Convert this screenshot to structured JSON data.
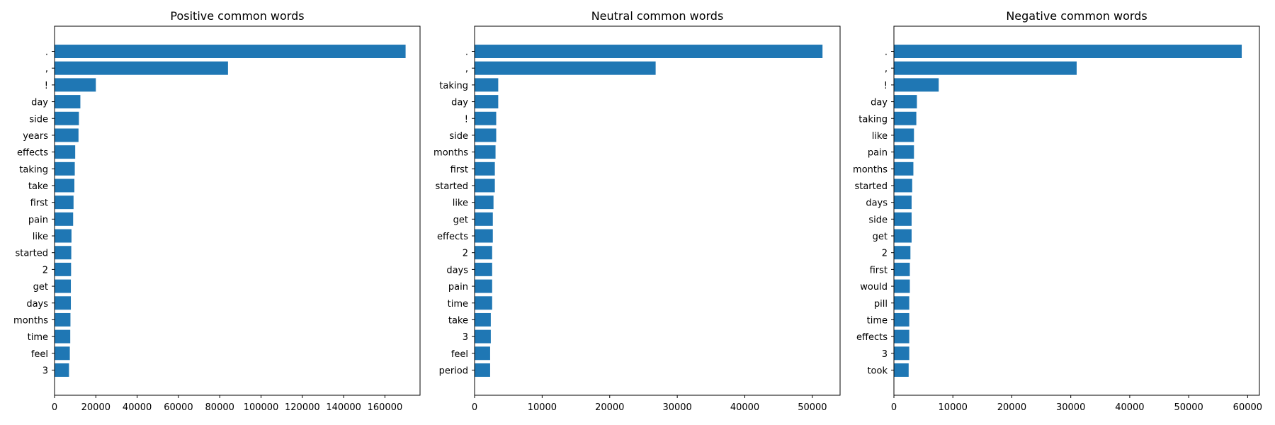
{
  "chart_data": [
    {
      "type": "bar",
      "orientation": "horizontal",
      "title": "Positive common words",
      "xlabel": "",
      "ylabel": "",
      "color": "#1f77b4",
      "xlim": [
        0,
        177000
      ],
      "xticks": [
        0,
        20000,
        40000,
        60000,
        80000,
        100000,
        120000,
        140000,
        160000
      ],
      "categories": [
        ".",
        ",",
        "!",
        "day",
        "side",
        "years",
        "effects",
        "taking",
        "take",
        "first",
        "pain",
        "like",
        "started",
        "2",
        "get",
        "days",
        "months",
        "time",
        "feel",
        "3"
      ],
      "values": [
        170000,
        84000,
        20000,
        12500,
        11800,
        11600,
        10000,
        9800,
        9600,
        9200,
        9000,
        8200,
        8100,
        8000,
        7900,
        7900,
        7700,
        7600,
        7400,
        7000
      ]
    },
    {
      "type": "bar",
      "orientation": "horizontal",
      "title": "Neutral common words",
      "xlabel": "",
      "ylabel": "",
      "color": "#1f77b4",
      "xlim": [
        0,
        54100
      ],
      "xticks": [
        0,
        10000,
        20000,
        30000,
        40000,
        50000
      ],
      "categories": [
        ".",
        ",",
        "taking",
        "day",
        "!",
        "side",
        "months",
        "first",
        "started",
        "like",
        "get",
        "effects",
        "2",
        "days",
        "pain",
        "time",
        "take",
        "3",
        "feel",
        "period"
      ],
      "values": [
        51500,
        26800,
        3500,
        3500,
        3200,
        3200,
        3100,
        3000,
        3000,
        2800,
        2700,
        2700,
        2600,
        2600,
        2600,
        2600,
        2400,
        2400,
        2300,
        2300
      ]
    },
    {
      "type": "bar",
      "orientation": "horizontal",
      "title": "Negative common words",
      "xlabel": "",
      "ylabel": "",
      "color": "#1f77b4",
      "xlim": [
        0,
        62000
      ],
      "xticks": [
        0,
        10000,
        20000,
        30000,
        40000,
        50000,
        60000
      ],
      "categories": [
        ".",
        ",",
        "!",
        "day",
        "taking",
        "like",
        "pain",
        "months",
        "started",
        "days",
        "side",
        "get",
        "2",
        "first",
        "would",
        "pill",
        "time",
        "effects",
        "3",
        "took"
      ],
      "values": [
        59000,
        31000,
        7600,
        3900,
        3800,
        3400,
        3400,
        3300,
        3100,
        3000,
        3000,
        3000,
        2800,
        2700,
        2700,
        2600,
        2600,
        2600,
        2600,
        2500
      ]
    }
  ]
}
